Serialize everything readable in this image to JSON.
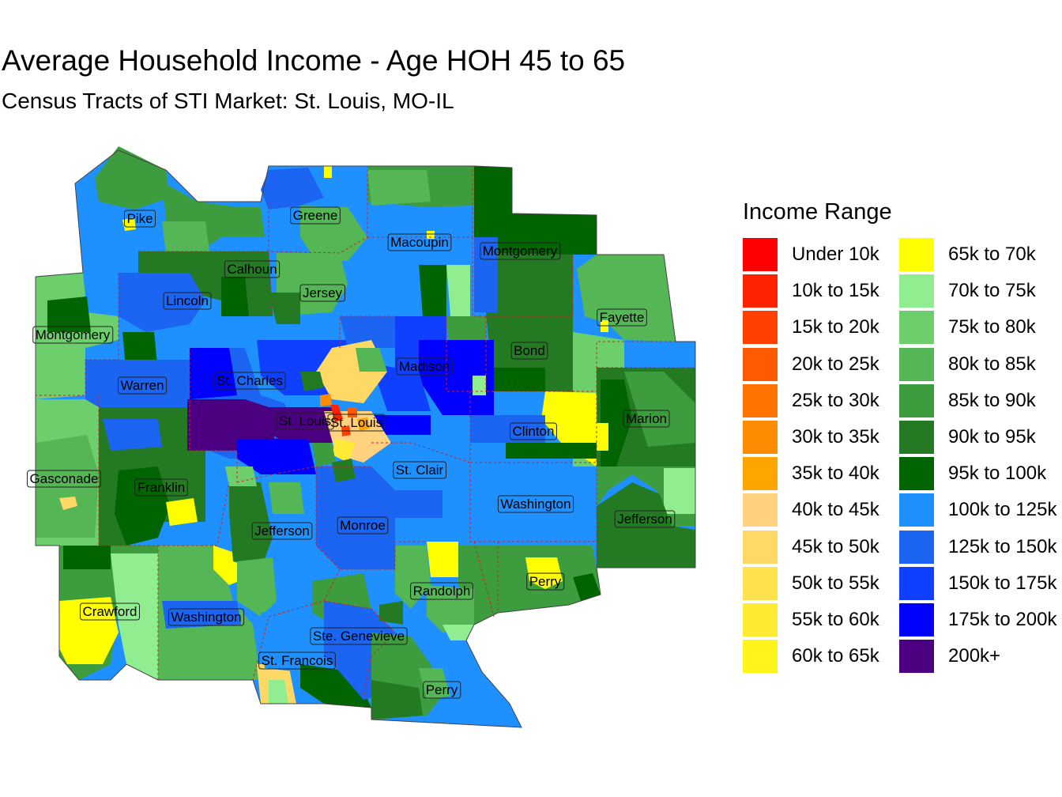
{
  "title": "Average Household Income - Age HOH 45 to 65",
  "subtitle": "Census Tracts of STI Market: St. Louis, MO-IL",
  "legend": {
    "title": "Income Range",
    "items": [
      {
        "label": "Under 10k",
        "color": "#ff0000"
      },
      {
        "label": "10k to 15k",
        "color": "#ff2200"
      },
      {
        "label": "15k to 20k",
        "color": "#ff4000"
      },
      {
        "label": "20k to 25k",
        "color": "#ff5a00"
      },
      {
        "label": "25k to 30k",
        "color": "#ff7400"
      },
      {
        "label": "30k to 35k",
        "color": "#ff8c00"
      },
      {
        "label": "35k to 40k",
        "color": "#ffa500"
      },
      {
        "label": "40k to 45k",
        "color": "#ffd27f"
      },
      {
        "label": "45k to 50k",
        "color": "#ffd966"
      },
      {
        "label": "50k to 55k",
        "color": "#ffe24d"
      },
      {
        "label": "55k to 60k",
        "color": "#ffeb33"
      },
      {
        "label": "60k to 65k",
        "color": "#fff51a"
      },
      {
        "label": "65k to 70k",
        "color": "#ffff00"
      },
      {
        "label": "70k to 75k",
        "color": "#90ee90"
      },
      {
        "label": "75k to 80k",
        "color": "#6ccf6c"
      },
      {
        "label": "80k to 85k",
        "color": "#55b655"
      },
      {
        "label": "85k to 90k",
        "color": "#3d9c3d"
      },
      {
        "label": "90k to 95k",
        "color": "#237a23"
      },
      {
        "label": "95k to 100k",
        "color": "#006400"
      },
      {
        "label": "100k to 125k",
        "color": "#1e90ff"
      },
      {
        "label": "125k to 150k",
        "color": "#1c64f2"
      },
      {
        "label": "150k to 175k",
        "color": "#1040ff"
      },
      {
        "label": "175k to 200k",
        "color": "#0000ff"
      },
      {
        "label": "200k+",
        "color": "#4b0082"
      }
    ]
  },
  "counties": [
    {
      "name": "Pike"
    },
    {
      "name": "Greene"
    },
    {
      "name": "Macoupin"
    },
    {
      "name": "Montgomery"
    },
    {
      "name": "Calhoun"
    },
    {
      "name": "Jersey"
    },
    {
      "name": "Lincoln"
    },
    {
      "name": "Fayette"
    },
    {
      "name": "Montgomery"
    },
    {
      "name": "Bond"
    },
    {
      "name": "Madison"
    },
    {
      "name": "St. Charles"
    },
    {
      "name": "Warren"
    },
    {
      "name": "Marion"
    },
    {
      "name": "St. Louis"
    },
    {
      "name": "St. Louis"
    },
    {
      "name": "Clinton"
    },
    {
      "name": "St. Clair"
    },
    {
      "name": "Gasconade"
    },
    {
      "name": "Franklin"
    },
    {
      "name": "Washington"
    },
    {
      "name": "Jefferson"
    },
    {
      "name": "Monroe"
    },
    {
      "name": "Jefferson"
    },
    {
      "name": "Randolph"
    },
    {
      "name": "Perry"
    },
    {
      "name": "Crawford"
    },
    {
      "name": "Washington"
    },
    {
      "name": "Ste. Genevieve"
    },
    {
      "name": "St. Francois"
    },
    {
      "name": "Perry"
    }
  ]
}
